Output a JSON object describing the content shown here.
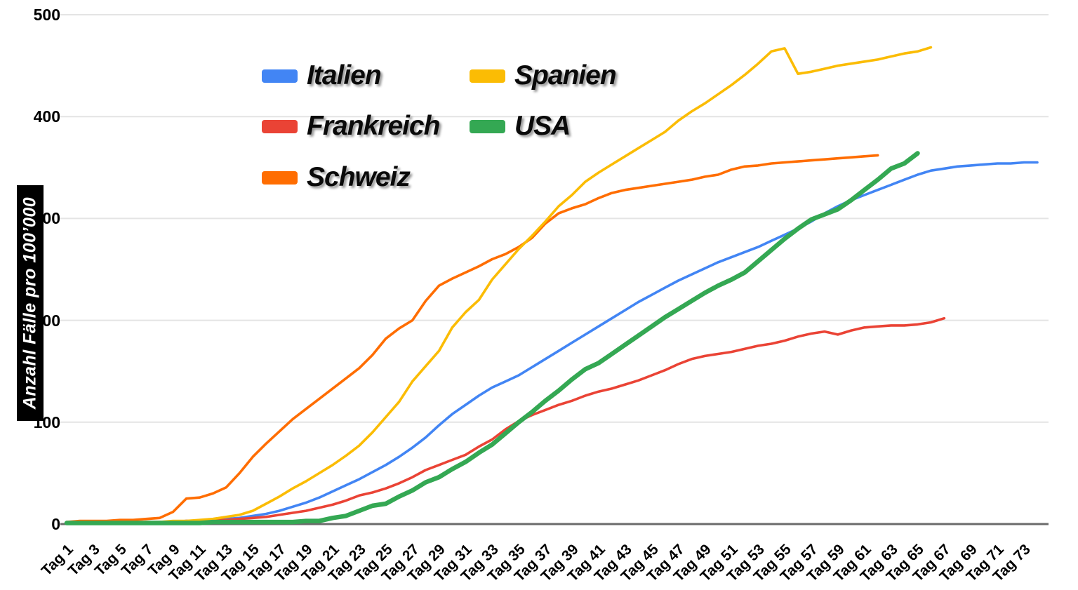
{
  "chart_data": {
    "type": "line",
    "title": "",
    "xlabel": "",
    "ylabel": "Anzahl Fälle pro 100’000",
    "ylim": [
      0,
      500
    ],
    "yticks": [
      0,
      100,
      200,
      300,
      400,
      500
    ],
    "ytick_labels": [
      "0",
      "100",
      "200",
      "300",
      "400",
      "500"
    ],
    "x_tick_labels": [
      "Tag 1",
      "Tag 3",
      "Tag 5",
      "Tag 7",
      "Tag 9",
      "Tag 11",
      "Tag 13",
      "Tag 15",
      "Tag 17",
      "Tag 19",
      "Tag 21",
      "Tag 23",
      "Tag 25",
      "Tag 27",
      "Tag 29",
      "Tag 31",
      "Tag 33",
      "Tag 35",
      "Tag 37",
      "Tag 39",
      "Tag 41",
      "Tag 43",
      "Tag 45",
      "Tag 47",
      "Tag 49",
      "Tag 51",
      "Tag 53",
      "Tag 55",
      "Tag 57",
      "Tag 59",
      "Tag 61",
      "Tag 63",
      "Tag 65",
      "Tag 67",
      "Tag 69",
      "Tag 71",
      "Tag 73"
    ],
    "x_tick_rotation": -45,
    "x_days_total": 74,
    "grid": "horizontal",
    "legend_position": "top-left-overlay",
    "background": "#ffffff",
    "gridline_color": "#e4e4e4",
    "axis_line_color": "#6b6b6b",
    "tick_label_color": "#000000",
    "ylabel_bg": "#000000",
    "ylabel_color": "#ffffff",
    "series": [
      {
        "name": "Italien",
        "color": "#4285f4",
        "thick": false,
        "start_day": 1,
        "values": [
          1,
          1,
          1,
          1,
          1,
          1,
          2,
          2,
          2,
          3,
          3,
          4,
          5,
          6,
          8,
          10,
          13,
          17,
          21,
          26,
          32,
          38,
          44,
          51,
          58,
          66,
          75,
          85,
          97,
          108,
          117,
          126,
          134,
          140,
          146,
          154,
          162,
          170,
          178,
          186,
          194,
          202,
          210,
          218,
          225,
          232,
          239,
          245,
          251,
          257,
          262,
          267,
          272,
          278,
          284,
          290,
          297,
          305,
          312,
          318,
          323,
          328,
          333,
          338,
          343,
          347,
          349,
          351,
          352,
          353,
          354,
          354,
          355,
          355
        ]
      },
      {
        "name": "Frankreich",
        "color": "#ea4335",
        "thick": false,
        "start_day": 1,
        "values": [
          1,
          1,
          1,
          1,
          1,
          1,
          2,
          2,
          2,
          3,
          3,
          4,
          4,
          5,
          6,
          7,
          9,
          11,
          13,
          16,
          19,
          23,
          28,
          31,
          35,
          40,
          46,
          53,
          58,
          63,
          68,
          76,
          83,
          93,
          101,
          107,
          112,
          117,
          121,
          126,
          130,
          133,
          137,
          141,
          146,
          151,
          157,
          162,
          165,
          167,
          169,
          172,
          175,
          177,
          180,
          184,
          187,
          189,
          186,
          190,
          193,
          194,
          195,
          195,
          196,
          198,
          202
        ]
      },
      {
        "name": "Schweiz",
        "color": "#ff6d01",
        "thick": false,
        "start_day": 1,
        "values": [
          2,
          3,
          3,
          3,
          4,
          4,
          5,
          6,
          12,
          25,
          26,
          30,
          36,
          50,
          66,
          79,
          91,
          103,
          113,
          123,
          133,
          143,
          153,
          166,
          182,
          192,
          200,
          219,
          234,
          241,
          247,
          253,
          260,
          265,
          272,
          281,
          295,
          305,
          310,
          314,
          320,
          325,
          328,
          330,
          332,
          334,
          336,
          338,
          341,
          343,
          348,
          351,
          352,
          354,
          355,
          356,
          357,
          358,
          359,
          360,
          361,
          362
        ]
      },
      {
        "name": "Spanien",
        "color": "#fbbc04",
        "thick": false,
        "start_day": 1,
        "values": [
          1,
          1,
          1,
          1,
          1,
          1,
          2,
          2,
          3,
          3,
          4,
          5,
          7,
          9,
          13,
          20,
          27,
          35,
          42,
          50,
          58,
          67,
          77,
          90,
          105,
          120,
          140,
          155,
          170,
          193,
          208,
          220,
          240,
          255,
          270,
          283,
          297,
          312,
          323,
          336,
          345,
          353,
          361,
          369,
          377,
          385,
          396,
          405,
          413,
          422,
          431,
          441,
          452,
          464,
          467,
          442,
          444,
          447,
          450,
          452,
          454,
          456,
          459,
          462,
          464,
          468
        ]
      },
      {
        "name": "USA",
        "color": "#34a853",
        "thick": true,
        "start_day": 1,
        "values": [
          1,
          1,
          1,
          1,
          1,
          1,
          1,
          1,
          1,
          1,
          1,
          2,
          2,
          2,
          2,
          2,
          2,
          2,
          3,
          3,
          6,
          8,
          13,
          18,
          20,
          27,
          33,
          41,
          46,
          54,
          61,
          70,
          78,
          89,
          100,
          110,
          121,
          131,
          142,
          152,
          158,
          167,
          176,
          185,
          194,
          203,
          211,
          219,
          227,
          234,
          240,
          247,
          258,
          269,
          280,
          290,
          299,
          304,
          309,
          318,
          328,
          338,
          349,
          354,
          364
        ]
      }
    ]
  }
}
